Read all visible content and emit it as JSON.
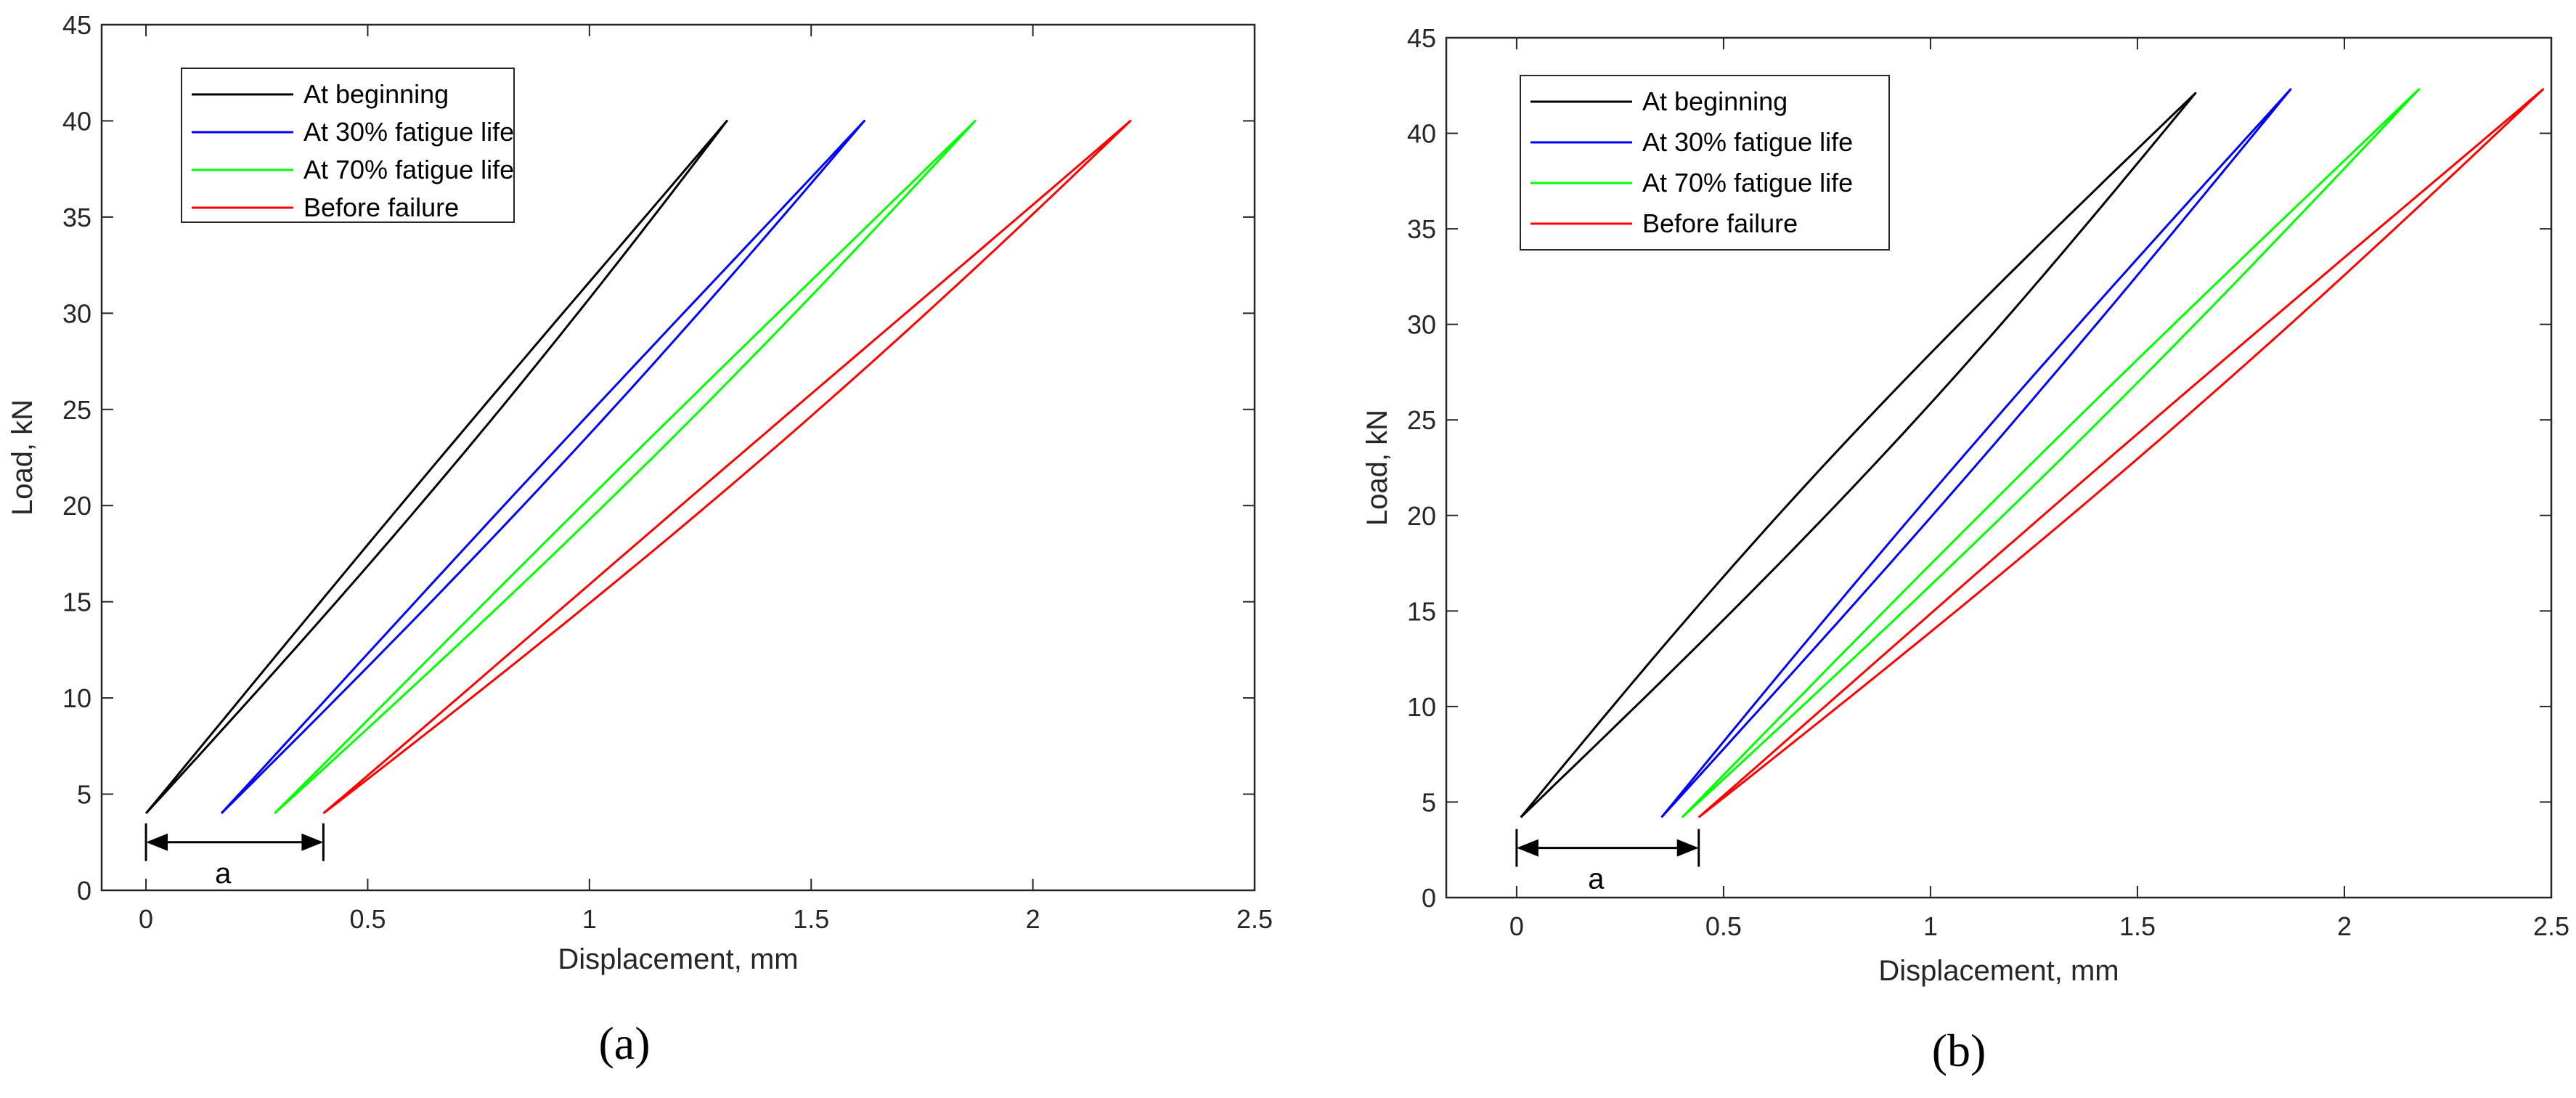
{
  "chart_data": [
    {
      "type": "line",
      "panel": "(a)",
      "panel_letter": "a",
      "xlabel": "Displacement, mm",
      "ylabel": "Load, kN",
      "xlim": [
        -0.1,
        2.5
      ],
      "ylim": [
        0,
        45
      ],
      "xticks": [
        0,
        0.5,
        1,
        1.5,
        2,
        2.5
      ],
      "xtick_labels": [
        "0",
        "0.5",
        "1",
        "1.5",
        "2",
        "2.5"
      ],
      "yticks": [
        0,
        5,
        10,
        15,
        20,
        25,
        30,
        35,
        40,
        45
      ],
      "ytick_labels": [
        "0",
        "5",
        "10",
        "15",
        "20",
        "25",
        "30",
        "35",
        "40",
        "45"
      ],
      "legend_position": "top-left",
      "annotation": {
        "label": "a",
        "x_from": 0,
        "x_to": 0.4,
        "y": 2.5
      },
      "series": [
        {
          "name": "At beginning",
          "color": "#000000",
          "x_start": 0.0,
          "x_end": 1.31,
          "y_min": 4,
          "y_max": 40,
          "loop_offset": 0.022,
          "curvature": 0.04
        },
        {
          "name": "At 30% fatigue life",
          "color": "#0000ff",
          "x_start": 0.17,
          "x_end": 1.62,
          "y_min": 4,
          "y_max": 40,
          "loop_offset": 0.022,
          "curvature": 0.04
        },
        {
          "name": "At 70% fatigue life",
          "color": "#00ff00",
          "x_start": 0.29,
          "x_end": 1.87,
          "y_min": 4,
          "y_max": 40,
          "loop_offset": 0.025,
          "curvature": 0.04
        },
        {
          "name": "Before failure",
          "color": "#ff0000",
          "x_start": 0.4,
          "x_end": 2.22,
          "y_min": 4,
          "y_max": 40,
          "loop_offset": 0.03,
          "curvature": 0.06
        }
      ]
    },
    {
      "type": "line",
      "panel": "(b)",
      "panel_letter": "b",
      "xlabel": "Displacement, mm",
      "ylabel": "Load, kN",
      "xlim": [
        -0.17,
        2.5
      ],
      "ylim": [
        0,
        45
      ],
      "xticks": [
        0,
        0.5,
        1,
        1.5,
        2,
        2.5
      ],
      "xtick_labels": [
        "0",
        "0.5",
        "1",
        "1.5",
        "2",
        "2.5"
      ],
      "yticks": [
        0,
        5,
        10,
        15,
        20,
        25,
        30,
        35,
        40,
        45
      ],
      "ytick_labels": [
        "0",
        "5",
        "10",
        "15",
        "20",
        "25",
        "30",
        "35",
        "40",
        "45"
      ],
      "legend_position": "top-left",
      "annotation": {
        "label": "a",
        "x_from": 0,
        "x_to": 0.44,
        "y": 2.6
      },
      "series": [
        {
          "name": "At beginning",
          "color": "#000000",
          "x_start": 0.01,
          "x_end": 1.64,
          "y_min": 4.2,
          "y_max": 42.1,
          "loop_offset": 0.06,
          "curvature": 0.0
        },
        {
          "name": "At 30% fatigue life",
          "color": "#0000ff",
          "x_start": 0.35,
          "x_end": 1.87,
          "y_min": 4.2,
          "y_max": 42.3,
          "loop_offset": 0.025,
          "curvature": 0.0
        },
        {
          "name": "At 70% fatigue life",
          "color": "#00ff00",
          "x_start": 0.4,
          "x_end": 2.18,
          "y_min": 4.2,
          "y_max": 42.3,
          "loop_offset": 0.03,
          "curvature": 0.02
        },
        {
          "name": "Before failure",
          "color": "#ff0000",
          "x_start": 0.44,
          "x_end": 2.48,
          "y_min": 4.2,
          "y_max": 42.3,
          "loop_offset": 0.035,
          "curvature": 0.04
        }
      ]
    }
  ]
}
